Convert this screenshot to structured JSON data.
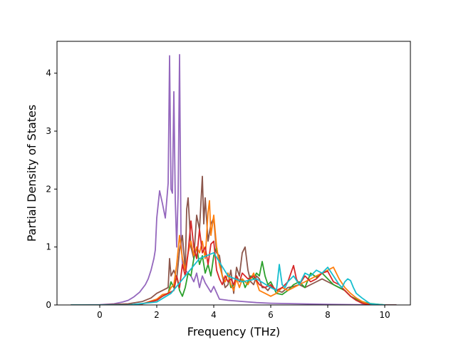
{
  "chart_data": {
    "type": "line",
    "title": "",
    "xlabel": "Frequency (THz)",
    "ylabel": "Partial Density of States",
    "xlim": [
      -1.5,
      10.9
    ],
    "ylim": [
      0,
      4.55
    ],
    "xticks": [
      0,
      2,
      4,
      6,
      8,
      10
    ],
    "yticks": [
      0,
      1,
      2,
      3,
      4
    ],
    "grid": false,
    "legend": "none",
    "series": [
      {
        "color": "#9467bd",
        "x": [
          -1.0,
          0.0,
          0.5,
          0.8,
          1.0,
          1.2,
          1.4,
          1.6,
          1.7,
          1.8,
          1.9,
          1.95,
          2.0,
          2.1,
          2.2,
          2.3,
          2.4,
          2.45,
          2.5,
          2.55,
          2.6,
          2.65,
          2.7,
          2.75,
          2.8,
          2.85,
          2.9,
          3.0,
          3.1,
          3.2,
          3.3,
          3.4,
          3.5,
          3.6,
          3.7,
          3.8,
          3.9,
          4.0,
          4.2,
          4.5,
          5.0,
          5.5,
          6.0,
          7.0,
          8.0,
          9.0,
          10.0,
          10.4
        ],
        "y": [
          0,
          0.005,
          0.02,
          0.05,
          0.08,
          0.14,
          0.22,
          0.35,
          0.45,
          0.6,
          0.8,
          0.95,
          1.5,
          1.97,
          1.75,
          1.5,
          2.1,
          4.3,
          2.0,
          1.93,
          3.68,
          1.8,
          1.0,
          1.9,
          4.32,
          1.2,
          0.7,
          0.6,
          0.55,
          0.5,
          0.4,
          0.55,
          0.3,
          0.5,
          0.38,
          0.3,
          0.22,
          0.32,
          0.1,
          0.08,
          0.06,
          0.04,
          0.03,
          0.02,
          0.01,
          0.005,
          0.0,
          0.0
        ]
      },
      {
        "color": "#8c564b",
        "x": [
          -1.0,
          0.0,
          1.0,
          1.5,
          1.8,
          2.0,
          2.2,
          2.4,
          2.45,
          2.5,
          2.6,
          2.7,
          2.8,
          2.9,
          3.0,
          3.05,
          3.1,
          3.2,
          3.3,
          3.4,
          3.5,
          3.6,
          3.65,
          3.7,
          3.8,
          3.9,
          4.0,
          4.1,
          4.2,
          4.3,
          4.4,
          4.5,
          4.6,
          4.7,
          4.8,
          4.9,
          5.0,
          5.1,
          5.2,
          5.3,
          5.4,
          5.5,
          5.6,
          5.7,
          5.8,
          5.9,
          6.0,
          6.2,
          6.4,
          6.6,
          6.8,
          7.0,
          7.2,
          7.4,
          7.6,
          7.8,
          8.0,
          8.2,
          8.4,
          8.6,
          8.8,
          9.0,
          9.2,
          9.4,
          10.0,
          10.4
        ],
        "y": [
          0,
          0.0,
          0.02,
          0.06,
          0.12,
          0.2,
          0.25,
          0.3,
          0.8,
          0.5,
          0.6,
          0.45,
          0.95,
          1.2,
          0.6,
          1.65,
          1.85,
          1.0,
          0.8,
          1.55,
          1.3,
          2.22,
          1.4,
          1.85,
          1.1,
          1.4,
          1.5,
          0.9,
          0.85,
          0.5,
          0.3,
          0.35,
          0.6,
          0.2,
          0.65,
          0.5,
          0.9,
          1.0,
          0.6,
          0.4,
          0.35,
          0.5,
          0.45,
          0.3,
          0.3,
          0.25,
          0.32,
          0.25,
          0.22,
          0.3,
          0.32,
          0.35,
          0.3,
          0.35,
          0.4,
          0.45,
          0.4,
          0.35,
          0.3,
          0.25,
          0.15,
          0.08,
          0.04,
          0.02,
          0.0,
          0.0
        ]
      },
      {
        "color": "#2ca02c",
        "x": [
          -1.0,
          1.0,
          1.5,
          2.0,
          2.2,
          2.4,
          2.5,
          2.6,
          2.7,
          2.8,
          2.9,
          3.0,
          3.1,
          3.2,
          3.3,
          3.4,
          3.5,
          3.6,
          3.7,
          3.8,
          3.9,
          4.0,
          4.1,
          4.2,
          4.3,
          4.4,
          4.5,
          4.6,
          4.7,
          4.8,
          4.9,
          5.0,
          5.1,
          5.2,
          5.3,
          5.4,
          5.5,
          5.6,
          5.7,
          5.8,
          5.9,
          6.0,
          6.2,
          6.4,
          6.6,
          6.8,
          7.0,
          7.2,
          7.4,
          7.6,
          7.8,
          8.0,
          8.2,
          8.4,
          8.6,
          8.8,
          9.0,
          9.2,
          9.4,
          10.0
        ],
        "y": [
          0,
          0.0,
          0.02,
          0.08,
          0.15,
          0.2,
          0.4,
          0.3,
          0.5,
          0.25,
          0.15,
          0.3,
          0.55,
          0.5,
          0.8,
          1.0,
          0.7,
          0.85,
          0.55,
          0.7,
          0.5,
          0.85,
          1.0,
          0.7,
          0.5,
          0.4,
          0.55,
          0.3,
          0.35,
          0.5,
          0.4,
          0.45,
          0.3,
          0.4,
          0.5,
          0.45,
          0.55,
          0.5,
          0.75,
          0.5,
          0.35,
          0.4,
          0.2,
          0.18,
          0.25,
          0.35,
          0.4,
          0.3,
          0.55,
          0.48,
          0.55,
          0.45,
          0.35,
          0.3,
          0.25,
          0.15,
          0.1,
          0.06,
          0.03,
          0.0
        ]
      },
      {
        "color": "#ff7f0e",
        "x": [
          -1.0,
          1.0,
          1.5,
          2.0,
          2.2,
          2.4,
          2.5,
          2.6,
          2.7,
          2.8,
          2.9,
          3.0,
          3.1,
          3.2,
          3.3,
          3.4,
          3.5,
          3.6,
          3.7,
          3.8,
          3.85,
          3.9,
          4.0,
          4.1,
          4.2,
          4.3,
          4.4,
          4.5,
          4.6,
          4.7,
          4.8,
          4.9,
          5.0,
          5.2,
          5.4,
          5.6,
          5.8,
          6.0,
          6.2,
          6.4,
          6.6,
          6.8,
          7.0,
          7.2,
          7.4,
          7.6,
          7.8,
          8.0,
          8.2,
          8.4,
          8.6,
          8.8,
          9.0,
          9.2,
          9.4,
          10.0
        ],
        "y": [
          0,
          0.0,
          0.02,
          0.1,
          0.18,
          0.2,
          0.3,
          0.35,
          0.7,
          1.2,
          0.8,
          0.6,
          0.9,
          1.1,
          0.85,
          1.0,
          0.9,
          1.1,
          0.8,
          1.6,
          1.8,
          1.2,
          1.55,
          1.0,
          0.7,
          0.5,
          0.4,
          0.55,
          0.35,
          0.25,
          0.45,
          0.3,
          0.45,
          0.35,
          0.55,
          0.25,
          0.2,
          0.15,
          0.2,
          0.3,
          0.25,
          0.3,
          0.35,
          0.4,
          0.45,
          0.5,
          0.55,
          0.6,
          0.65,
          0.45,
          0.3,
          0.2,
          0.12,
          0.06,
          0.02,
          0.0
        ]
      },
      {
        "color": "#d62728",
        "x": [
          -1.0,
          1.0,
          1.5,
          2.0,
          2.2,
          2.4,
          2.6,
          2.7,
          2.8,
          2.9,
          3.0,
          3.1,
          3.2,
          3.3,
          3.4,
          3.5,
          3.6,
          3.7,
          3.8,
          3.9,
          4.0,
          4.1,
          4.2,
          4.3,
          4.4,
          4.5,
          4.6,
          4.7,
          4.8,
          4.9,
          5.0,
          5.2,
          5.4,
          5.6,
          5.8,
          6.0,
          6.2,
          6.4,
          6.6,
          6.8,
          6.9,
          7.0,
          7.2,
          7.4,
          7.6,
          7.8,
          8.0,
          8.2,
          8.4,
          8.6,
          8.8,
          9.0,
          9.2,
          9.4,
          10.0
        ],
        "y": [
          0,
          0.0,
          0.02,
          0.08,
          0.15,
          0.2,
          0.25,
          0.5,
          0.3,
          0.7,
          0.5,
          0.9,
          1.45,
          1.0,
          0.8,
          1.3,
          0.9,
          1.0,
          0.7,
          1.05,
          1.1,
          0.6,
          0.45,
          0.35,
          0.5,
          0.4,
          0.45,
          0.35,
          0.5,
          0.4,
          0.55,
          0.45,
          0.5,
          0.35,
          0.3,
          0.35,
          0.25,
          0.3,
          0.4,
          0.68,
          0.45,
          0.35,
          0.5,
          0.4,
          0.45,
          0.55,
          0.58,
          0.4,
          0.35,
          0.25,
          0.15,
          0.08,
          0.03,
          0.01,
          0.0
        ]
      },
      {
        "color": "#17becf",
        "x": [
          -1.0,
          1.0,
          2.0,
          2.5,
          3.0,
          3.5,
          4.0,
          4.5,
          5.0,
          5.5,
          6.0,
          6.2,
          6.3,
          6.4,
          6.5,
          6.6,
          6.8,
          7.0,
          7.2,
          7.4,
          7.6,
          7.8,
          8.0,
          8.2,
          8.4,
          8.5,
          8.6,
          8.7,
          8.8,
          8.9,
          9.0,
          9.2,
          9.4,
          9.5,
          10.0
        ],
        "y": [
          0,
          0.0,
          0.05,
          0.2,
          0.5,
          0.8,
          0.9,
          0.5,
          0.4,
          0.45,
          0.3,
          0.25,
          0.7,
          0.35,
          0.3,
          0.4,
          0.5,
          0.35,
          0.55,
          0.5,
          0.6,
          0.55,
          0.65,
          0.5,
          0.35,
          0.3,
          0.4,
          0.45,
          0.42,
          0.3,
          0.2,
          0.12,
          0.05,
          0.02,
          0.0
        ]
      }
    ]
  }
}
